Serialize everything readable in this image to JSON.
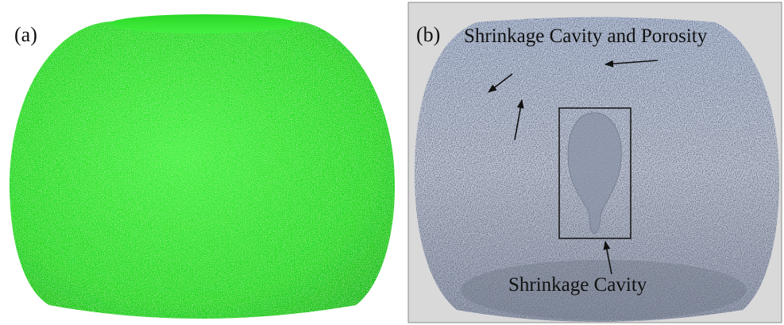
{
  "panels": [
    {
      "label": "(a)"
    },
    {
      "label": "(b)",
      "annotations": [
        "Shrinkage Cavity and Porosity",
        "Shrinkage Cavity"
      ]
    }
  ]
}
